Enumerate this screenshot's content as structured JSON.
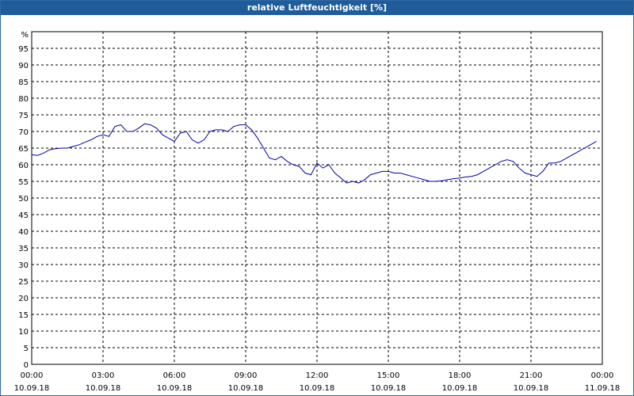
{
  "window": {
    "title": "relative Luftfeuchtigkeit [%]"
  },
  "colors": {
    "titlebar": "#1f5c99",
    "line": "#0000aa",
    "grid": "#000000"
  },
  "chart_data": {
    "type": "line",
    "title": "relative Luftfeuchtigkeit [%]",
    "ylabel": "%",
    "ylim": [
      0,
      100
    ],
    "yticks": [
      0,
      5,
      10,
      15,
      20,
      25,
      30,
      35,
      40,
      45,
      50,
      55,
      60,
      65,
      70,
      75,
      80,
      85,
      90,
      95
    ],
    "xlim": [
      "10.09.18 00:00",
      "11.09.18 00:00"
    ],
    "xticks": [
      {
        "time": "00:00",
        "date": "10.09.18"
      },
      {
        "time": "03:00",
        "date": "10.09.18"
      },
      {
        "time": "06:00",
        "date": "10.09.18"
      },
      {
        "time": "09:00",
        "date": "10.09.18"
      },
      {
        "time": "12:00",
        "date": "10.09.18"
      },
      {
        "time": "15:00",
        "date": "10.09.18"
      },
      {
        "time": "18:00",
        "date": "10.09.18"
      },
      {
        "time": "21:00",
        "date": "10.09.18"
      },
      {
        "time": "00:00",
        "date": "11.09.18"
      }
    ],
    "grid": true,
    "series": [
      {
        "x": [
          "00:00",
          "00:15",
          "00:30",
          "00:45",
          "01:00",
          "01:15",
          "01:30",
          "01:45",
          "02:00",
          "02:15",
          "02:30",
          "02:45",
          "03:00",
          "03:15",
          "03:30",
          "03:45",
          "04:00",
          "04:15",
          "04:30",
          "04:45",
          "05:00",
          "05:15",
          "05:30",
          "05:45",
          "06:00",
          "06:15",
          "06:30",
          "06:45",
          "07:00",
          "07:15",
          "07:30",
          "07:45",
          "08:00",
          "08:15",
          "08:30",
          "08:45",
          "09:00",
          "09:15",
          "09:30",
          "09:45",
          "10:00",
          "10:15",
          "10:30",
          "10:45",
          "11:00",
          "11:15",
          "11:30",
          "11:45",
          "12:00",
          "12:15",
          "12:30",
          "12:45",
          "13:00",
          "13:15",
          "13:30",
          "13:45",
          "14:00",
          "14:15",
          "14:30",
          "14:45",
          "15:00",
          "15:15",
          "15:30",
          "15:45",
          "16:00",
          "16:15",
          "16:30",
          "16:45",
          "17:00",
          "17:15",
          "17:30",
          "17:45",
          "18:00",
          "18:15",
          "18:30",
          "18:45",
          "19:00",
          "19:15",
          "19:30",
          "19:45",
          "20:00",
          "20:15",
          "20:30",
          "20:45",
          "21:00",
          "21:15",
          "21:30",
          "21:45",
          "22:00",
          "22:15",
          "22:30",
          "22:45",
          "23:00",
          "23:15",
          "23:30",
          "23:45"
        ],
        "values": [
          63,
          62.8,
          63.5,
          64.5,
          64.8,
          65,
          65,
          65.5,
          66,
          66.8,
          67.5,
          68.5,
          69,
          68.5,
          71.5,
          72,
          70,
          70,
          71,
          72.3,
          72,
          71,
          69,
          68,
          67,
          69.5,
          70,
          67.5,
          66.5,
          67.5,
          70,
          70.5,
          70.5,
          70,
          71.5,
          72,
          72,
          70.5,
          68,
          65,
          62,
          61.5,
          62.5,
          61,
          60,
          59.5,
          57.5,
          57,
          60.5,
          59,
          60,
          57.5,
          56,
          54.5,
          55,
          54.5,
          55.5,
          57,
          57.5,
          58,
          58,
          57.5,
          57.5,
          57,
          56.5,
          56,
          55.5,
          55,
          55,
          55.2,
          55.5,
          55.8,
          56,
          56.3,
          56.5,
          57,
          58,
          59,
          60,
          61,
          61.5,
          61,
          59,
          57.5,
          57,
          56.5,
          58,
          60.5,
          60.5,
          61,
          62,
          63,
          64,
          65,
          66,
          67
        ]
      }
    ]
  }
}
